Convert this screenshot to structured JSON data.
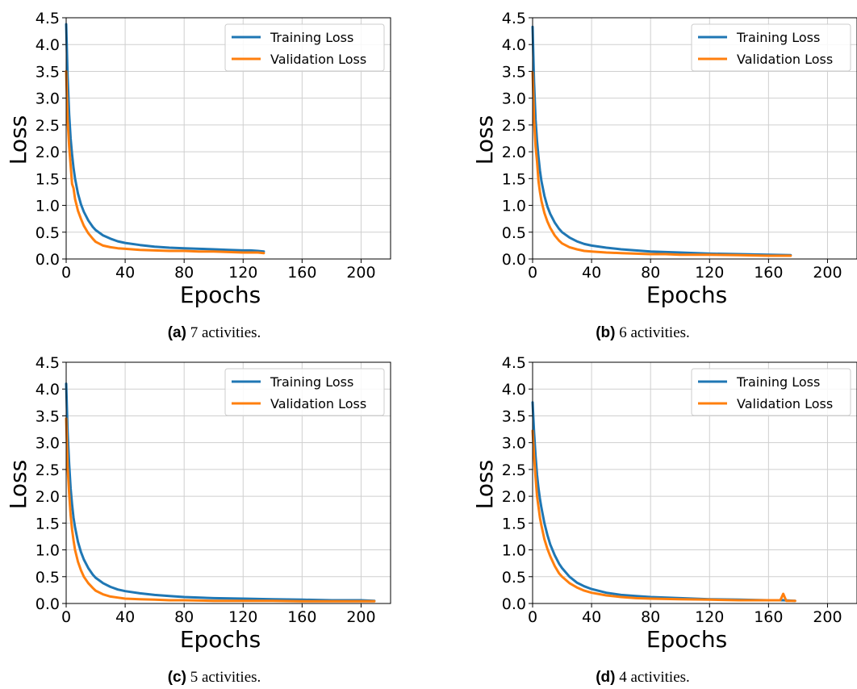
{
  "colors": {
    "training": "#1f77b4",
    "validation": "#ff7f0e",
    "grid": "#cfcfcf",
    "axis": "#000000"
  },
  "chart_data": [
    {
      "type": "line",
      "caption_tag": "(a)",
      "caption_text": "7 activities.",
      "xlabel": "Epochs",
      "ylabel": "Loss",
      "xlim": [
        0,
        220
      ],
      "ylim": [
        0,
        4.5
      ],
      "xticks": [
        "0",
        "40",
        "80",
        "120",
        "160",
        "200"
      ],
      "yticks": [
        "0.0",
        "0.5",
        "1.0",
        "1.5",
        "2.0",
        "2.5",
        "3.0",
        "3.5",
        "4.0",
        "4.5"
      ],
      "grid": true,
      "legend": "top-right",
      "series": [
        {
          "name": "Training Loss",
          "x": [
            0,
            1,
            2,
            3,
            4,
            5,
            6,
            8,
            10,
            12,
            15,
            18,
            20,
            25,
            30,
            35,
            40,
            50,
            60,
            70,
            80,
            90,
            100,
            110,
            120,
            125,
            130,
            134
          ],
          "y": [
            4.38,
            3.4,
            2.7,
            2.25,
            1.95,
            1.7,
            1.5,
            1.22,
            1.02,
            0.88,
            0.72,
            0.6,
            0.54,
            0.44,
            0.38,
            0.33,
            0.3,
            0.26,
            0.23,
            0.21,
            0.2,
            0.19,
            0.18,
            0.17,
            0.16,
            0.16,
            0.15,
            0.14
          ]
        },
        {
          "name": "Validation Loss",
          "x": [
            0,
            1,
            2,
            3,
            4,
            5,
            6,
            8,
            10,
            12,
            15,
            18,
            20,
            25,
            30,
            35,
            40,
            50,
            60,
            70,
            80,
            90,
            100,
            110,
            120,
            125,
            130,
            134
          ],
          "y": [
            3.5,
            2.6,
            2.1,
            1.75,
            1.4,
            1.32,
            1.12,
            0.9,
            0.75,
            0.62,
            0.48,
            0.38,
            0.32,
            0.25,
            0.22,
            0.2,
            0.19,
            0.17,
            0.16,
            0.15,
            0.15,
            0.14,
            0.14,
            0.13,
            0.12,
            0.12,
            0.12,
            0.11
          ]
        }
      ]
    },
    {
      "type": "line",
      "caption_tag": "(b)",
      "caption_text": "6 activities.",
      "xlabel": "Epochs",
      "ylabel": "Loss",
      "xlim": [
        0,
        220
      ],
      "ylim": [
        0,
        4.5
      ],
      "xticks": [
        "0",
        "40",
        "80",
        "120",
        "160",
        "200"
      ],
      "yticks": [
        "0.0",
        "0.5",
        "1.0",
        "1.5",
        "2.0",
        "2.5",
        "3.0",
        "3.5",
        "4.0",
        "4.5"
      ],
      "grid": true,
      "legend": "top-right",
      "series": [
        {
          "name": "Training Loss",
          "x": [
            0,
            1,
            2,
            3,
            4,
            5,
            6,
            8,
            10,
            12,
            15,
            18,
            20,
            25,
            30,
            35,
            40,
            50,
            60,
            70,
            80,
            90,
            100,
            120,
            140,
            160,
            175
          ],
          "y": [
            4.33,
            3.3,
            2.6,
            2.2,
            1.9,
            1.65,
            1.45,
            1.18,
            0.98,
            0.84,
            0.68,
            0.56,
            0.5,
            0.4,
            0.33,
            0.28,
            0.25,
            0.21,
            0.18,
            0.16,
            0.14,
            0.13,
            0.12,
            0.1,
            0.09,
            0.08,
            0.07
          ]
        },
        {
          "name": "Validation Loss",
          "x": [
            0,
            1,
            2,
            3,
            4,
            5,
            6,
            8,
            10,
            12,
            15,
            18,
            20,
            25,
            30,
            35,
            40,
            50,
            60,
            70,
            80,
            90,
            100,
            120,
            140,
            160,
            175
          ],
          "y": [
            3.48,
            2.6,
            2.1,
            1.82,
            1.45,
            1.25,
            1.08,
            0.86,
            0.7,
            0.58,
            0.44,
            0.34,
            0.29,
            0.22,
            0.18,
            0.15,
            0.14,
            0.12,
            0.11,
            0.1,
            0.09,
            0.09,
            0.08,
            0.08,
            0.07,
            0.06,
            0.06
          ]
        }
      ]
    },
    {
      "type": "line",
      "caption_tag": "(c)",
      "caption_text": "5 activities.",
      "xlabel": "Epochs",
      "ylabel": "Loss",
      "xlim": [
        0,
        220
      ],
      "ylim": [
        0,
        4.5
      ],
      "xticks": [
        "0",
        "40",
        "80",
        "120",
        "160",
        "200"
      ],
      "yticks": [
        "0.0",
        "0.5",
        "1.0",
        "1.5",
        "2.0",
        "2.5",
        "3.0",
        "3.5",
        "4.0",
        "4.5"
      ],
      "grid": true,
      "legend": "top-right",
      "series": [
        {
          "name": "Training Loss",
          "x": [
            0,
            1,
            2,
            3,
            4,
            5,
            6,
            8,
            10,
            12,
            15,
            18,
            20,
            25,
            30,
            35,
            40,
            50,
            60,
            70,
            80,
            100,
            120,
            140,
            160,
            180,
            200,
            209
          ],
          "y": [
            4.1,
            3.2,
            2.6,
            2.15,
            1.85,
            1.6,
            1.42,
            1.15,
            0.96,
            0.82,
            0.66,
            0.54,
            0.48,
            0.38,
            0.31,
            0.26,
            0.23,
            0.19,
            0.16,
            0.14,
            0.12,
            0.1,
            0.09,
            0.08,
            0.07,
            0.06,
            0.06,
            0.05
          ]
        },
        {
          "name": "Validation Loss",
          "x": [
            0,
            1,
            2,
            3,
            4,
            5,
            6,
            8,
            10,
            12,
            15,
            18,
            20,
            25,
            30,
            35,
            40,
            50,
            60,
            70,
            80,
            100,
            120,
            140,
            160,
            180,
            200,
            209
          ],
          "y": [
            3.45,
            2.55,
            2.05,
            1.65,
            1.38,
            1.18,
            1.0,
            0.78,
            0.62,
            0.5,
            0.38,
            0.29,
            0.24,
            0.17,
            0.13,
            0.11,
            0.09,
            0.08,
            0.07,
            0.06,
            0.06,
            0.05,
            0.05,
            0.05,
            0.04,
            0.04,
            0.04,
            0.04
          ]
        }
      ]
    },
    {
      "type": "line",
      "caption_tag": "(d)",
      "caption_text": "4 activities.",
      "xlabel": "Epochs",
      "ylabel": "Loss",
      "xlim": [
        0,
        220
      ],
      "ylim": [
        0,
        4.5
      ],
      "xticks": [
        "0",
        "40",
        "80",
        "120",
        "160",
        "200"
      ],
      "yticks": [
        "0.0",
        "0.5",
        "1.0",
        "1.5",
        "2.0",
        "2.5",
        "3.0",
        "3.5",
        "4.0",
        "4.5"
      ],
      "grid": true,
      "legend": "top-right",
      "series": [
        {
          "name": "Training Loss",
          "x": [
            0,
            1,
            2,
            3,
            4,
            5,
            6,
            8,
            10,
            12,
            15,
            18,
            20,
            25,
            30,
            35,
            40,
            50,
            60,
            70,
            80,
            100,
            120,
            140,
            160,
            170,
            178
          ],
          "y": [
            3.75,
            3.2,
            2.75,
            2.4,
            2.15,
            1.95,
            1.78,
            1.5,
            1.28,
            1.1,
            0.9,
            0.74,
            0.66,
            0.5,
            0.39,
            0.32,
            0.27,
            0.2,
            0.16,
            0.14,
            0.12,
            0.1,
            0.08,
            0.07,
            0.06,
            0.06,
            0.05
          ]
        },
        {
          "name": "Validation Loss",
          "x": [
            0,
            1,
            2,
            3,
            4,
            5,
            6,
            8,
            10,
            12,
            15,
            18,
            20,
            25,
            30,
            35,
            40,
            50,
            60,
            70,
            80,
            100,
            120,
            140,
            160,
            168,
            170,
            172,
            178
          ],
          "y": [
            3.22,
            2.75,
            2.35,
            2.0,
            1.8,
            1.6,
            1.45,
            1.2,
            1.02,
            0.88,
            0.7,
            0.56,
            0.5,
            0.38,
            0.3,
            0.24,
            0.2,
            0.15,
            0.12,
            0.1,
            0.09,
            0.08,
            0.07,
            0.06,
            0.06,
            0.06,
            0.18,
            0.05,
            0.05
          ]
        }
      ]
    }
  ]
}
